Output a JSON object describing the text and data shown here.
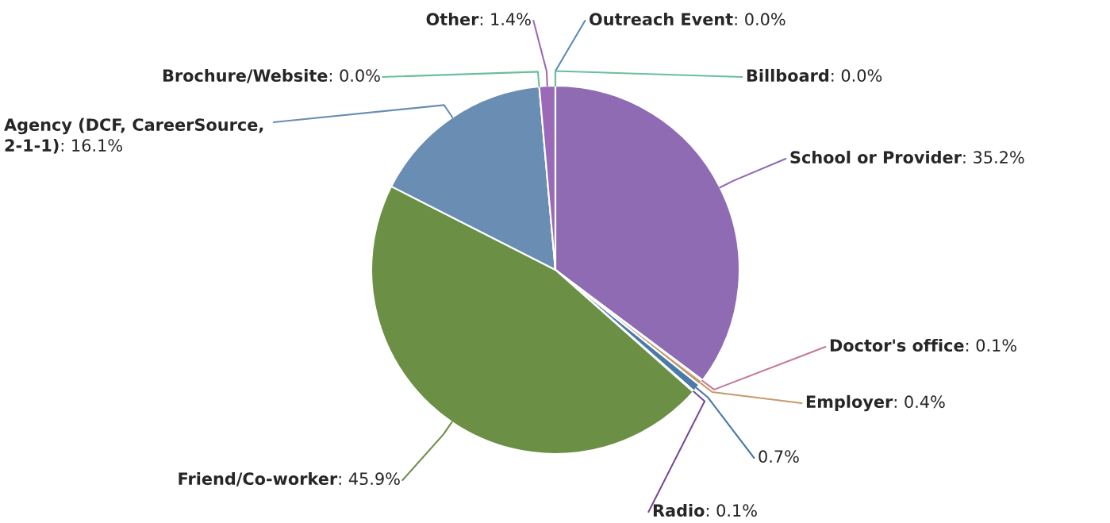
{
  "chart_data": {
    "type": "pie",
    "categories": [
      "School or Provider",
      "Doctor's office",
      "Employer",
      null,
      "Radio",
      "Friend/Co-worker",
      "Agency (DCF, CareerSource, 2-1-1)",
      "Brochure/Website",
      "Other",
      "Outreach Event",
      "Billboard"
    ],
    "values": [
      35.2,
      0.1,
      0.4,
      0.7,
      0.1,
      45.9,
      16.1,
      0.0,
      1.4,
      0.0,
      0.0
    ],
    "value_labels": [
      ": 35.2%",
      ": 0.1%",
      ": 0.4%",
      "0.7%",
      ": 0.1%",
      ": 45.9%",
      ": 16.1%",
      ": 0.0%",
      ": 1.4%",
      ": 0.0%",
      ": 0.0%"
    ],
    "colors": [
      "#8e6bb3",
      "#c4789a",
      "#c49a6c",
      "#4a7aa8",
      "#7a4a9a",
      "#6a8f45",
      "#6a8db3",
      "#6abf9a",
      "#9a6ab8",
      "#5a8ab8",
      "#6abf9a"
    ],
    "legend": false
  }
}
